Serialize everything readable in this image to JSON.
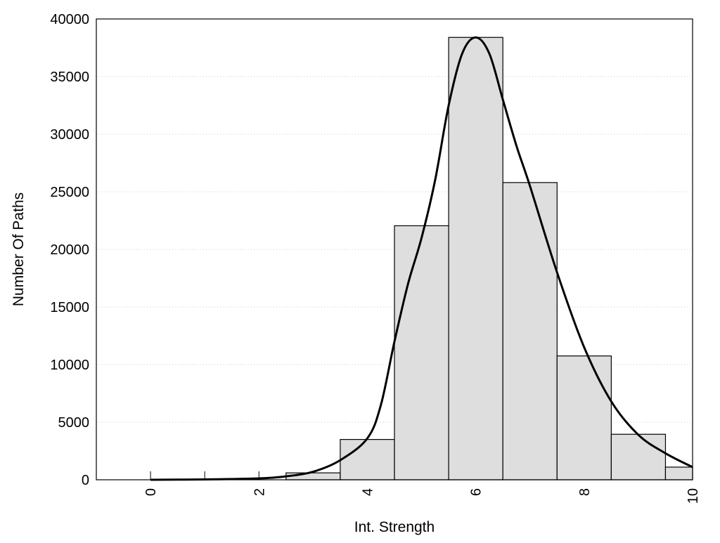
{
  "chart_data": {
    "type": "bar",
    "title": "",
    "xlabel": "Int. Strength",
    "ylabel": "Number Of Paths",
    "xlim": [
      -1,
      10
    ],
    "ylim": [
      0,
      40000
    ],
    "xticks": [
      0,
      2,
      4,
      6,
      8,
      10
    ],
    "yticks": [
      0,
      5000,
      10000,
      15000,
      20000,
      25000,
      30000,
      35000,
      40000
    ],
    "grid": "horizontal dotted",
    "bars": {
      "centers": [
        3,
        4,
        5,
        6,
        7,
        8,
        9,
        10
      ],
      "values": [
        600,
        3500,
        22050,
        38400,
        25800,
        10750,
        3950,
        1100
      ],
      "width": 1,
      "color": "#dedede"
    },
    "curve": {
      "x": [
        0,
        1,
        2,
        2.5,
        3,
        3.5,
        4,
        4.25,
        4.5,
        4.75,
        5,
        5.25,
        5.5,
        5.75,
        6,
        6.25,
        6.5,
        6.75,
        7,
        7.5,
        8,
        8.5,
        9,
        9.5,
        10
      ],
      "y": [
        0,
        30,
        120,
        300,
        700,
        1700,
        3600,
        6500,
        12000,
        17000,
        21000,
        26000,
        32500,
        37000,
        38400,
        37000,
        33000,
        29000,
        25500,
        18000,
        11500,
        6800,
        3900,
        2300,
        1100
      ],
      "color": "#000000"
    }
  }
}
